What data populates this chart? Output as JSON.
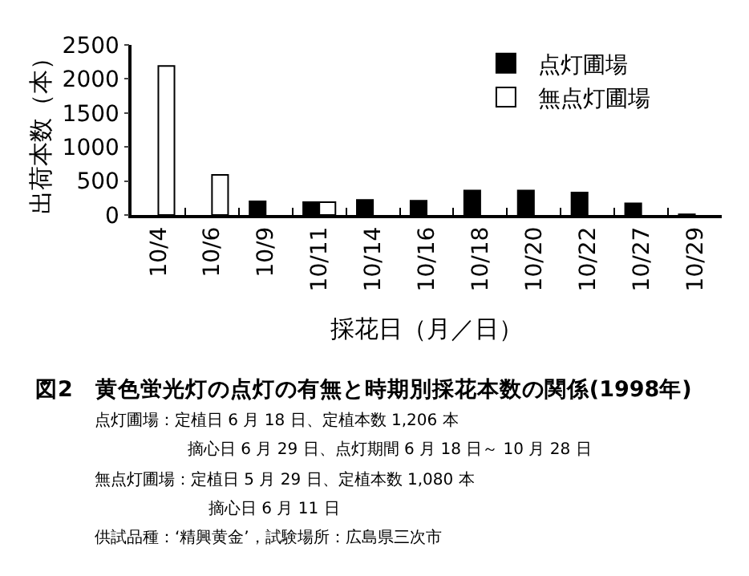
{
  "chart_data": {
    "type": "bar",
    "xlabel": "採花日（月／日）",
    "ylabel": "出荷本数（本）",
    "categories": [
      "10/4",
      "10/6",
      "10/9",
      "10/11",
      "10/14",
      "10/16",
      "10/18",
      "10/20",
      "10/22",
      "10/27",
      "10/29"
    ],
    "series": [
      {
        "name": "点灯圃場",
        "color": "#000000",
        "values": [
          null,
          null,
          200,
          190,
          220,
          210,
          360,
          360,
          330,
          170,
          10
        ]
      },
      {
        "name": "無点灯圃場",
        "color": "#ffffff",
        "values": [
          2190,
          590,
          null,
          190,
          null,
          null,
          null,
          null,
          null,
          null,
          null
        ]
      }
    ],
    "ylim": [
      0,
      2500
    ],
    "yticks": [
      0,
      500,
      1000,
      1500,
      2000,
      2500
    ],
    "legend": "top right",
    "title": "図2　黄色蛍光灯の点灯の有無と時期別採花本数の関係(1998年)",
    "annotations": [
      "点灯圃場：定植日 6 月 18 日、定植本数 1,206 本",
      "摘心日 6 月 29 日、点灯期間 6 月 18 日～ 10 月 28 日",
      "無点灯圃場：定植日 5 月 29 日、定植本数 1,080 本",
      "摘心日 6 月 11 日",
      "供試品種：‘精興黄金’，試験場所：広島県三次市"
    ]
  }
}
